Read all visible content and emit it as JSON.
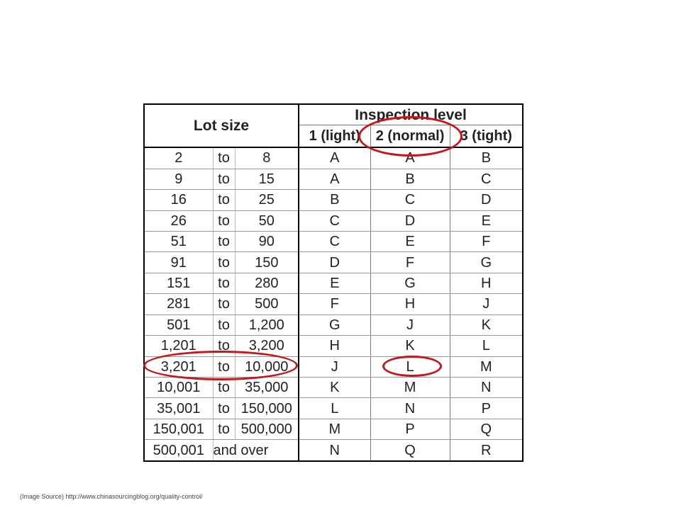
{
  "table": {
    "header": {
      "lot_size": "Lot size",
      "inspection_level": "Inspection level",
      "levels": [
        "1 (light)",
        "2 (normal)",
        "3 (tight)"
      ]
    },
    "rows": [
      {
        "from": "2",
        "to": "to",
        "upper": "8",
        "l1": "A",
        "l2": "A",
        "l3": "B"
      },
      {
        "from": "9",
        "to": "to",
        "upper": "15",
        "l1": "A",
        "l2": "B",
        "l3": "C"
      },
      {
        "from": "16",
        "to": "to",
        "upper": "25",
        "l1": "B",
        "l2": "C",
        "l3": "D"
      },
      {
        "from": "26",
        "to": "to",
        "upper": "50",
        "l1": "C",
        "l2": "D",
        "l3": "E"
      },
      {
        "from": "51",
        "to": "to",
        "upper": "90",
        "l1": "C",
        "l2": "E",
        "l3": "F"
      },
      {
        "from": "91",
        "to": "to",
        "upper": "150",
        "l1": "D",
        "l2": "F",
        "l3": "G"
      },
      {
        "from": "151",
        "to": "to",
        "upper": "280",
        "l1": "E",
        "l2": "G",
        "l3": "H"
      },
      {
        "from": "281",
        "to": "to",
        "upper": "500",
        "l1": "F",
        "l2": "H",
        "l3": "J"
      },
      {
        "from": "501",
        "to": "to",
        "upper": "1,200",
        "l1": "G",
        "l2": "J",
        "l3": "K"
      },
      {
        "from": "1,201",
        "to": "to",
        "upper": "3,200",
        "l1": "H",
        "l2": "K",
        "l3": "L"
      },
      {
        "from": "3,201",
        "to": "to",
        "upper": "10,000",
        "l1": "J",
        "l2": "L",
        "l3": "M"
      },
      {
        "from": "10,001",
        "to": "to",
        "upper": "35,000",
        "l1": "K",
        "l2": "M",
        "l3": "N"
      },
      {
        "from": "35,001",
        "to": "to",
        "upper": "150,000",
        "l1": "L",
        "l2": "N",
        "l3": "P"
      },
      {
        "from": "150,001",
        "to": "to",
        "upper": "500,000",
        "l1": "M",
        "l2": "P",
        "l3": "Q"
      }
    ],
    "last_row": {
      "from": "500,001",
      "open": "and over",
      "l1": "N",
      "l2": "Q",
      "l3": "R"
    }
  },
  "highlight_color": "#c4161c",
  "source_note": "(Image Source) http://www.chinasourcingblog.org/quality-control/"
}
